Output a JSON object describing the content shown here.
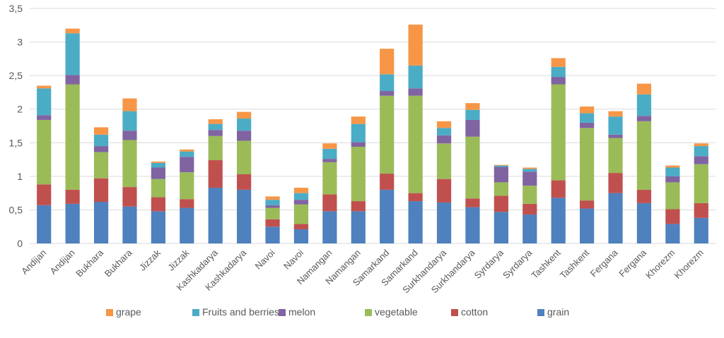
{
  "chart_data": {
    "type": "bar",
    "stacked": true,
    "grid": true,
    "legend_position": "bottom",
    "ylim": [
      0,
      3.5
    ],
    "y_ticks": [
      "0",
      "0,5",
      "1",
      "1,5",
      "2",
      "2,5",
      "3",
      "3,5"
    ],
    "categories": [
      "Andijan",
      "Andijan",
      "Bukhara",
      "Bukhara",
      "Jizzak",
      "Jizzak",
      "Kashkadarya",
      "Kashkadarya",
      "Navoi",
      "Navoi",
      "Namangan",
      "Namangan",
      "Samarkand",
      "Samarkand",
      "Surkhandarya",
      "Surkhandarya",
      "Syrdarya",
      "Syrdarya",
      "Tashkent",
      "Tashkent",
      "Fergana",
      "Fergana",
      "Khorezm",
      "Khorezm"
    ],
    "series": [
      {
        "name": "grain",
        "color": "#4E81BD",
        "values": [
          0.57,
          0.59,
          0.62,
          0.55,
          0.48,
          0.53,
          0.83,
          0.8,
          0.25,
          0.21,
          0.48,
          0.48,
          0.8,
          0.63,
          0.61,
          0.54,
          0.47,
          0.43,
          0.68,
          0.52,
          0.75,
          0.6,
          0.29,
          0.38
        ]
      },
      {
        "name": "cotton",
        "color": "#C0504E",
        "values": [
          0.31,
          0.21,
          0.35,
          0.29,
          0.21,
          0.13,
          0.41,
          0.23,
          0.11,
          0.08,
          0.25,
          0.15,
          0.24,
          0.12,
          0.35,
          0.13,
          0.24,
          0.16,
          0.26,
          0.12,
          0.3,
          0.2,
          0.22,
          0.22
        ]
      },
      {
        "name": "vegetable",
        "color": "#9BBB58",
        "values": [
          0.96,
          1.57,
          0.39,
          0.7,
          0.27,
          0.4,
          0.36,
          0.5,
          0.17,
          0.29,
          0.48,
          0.81,
          1.16,
          1.45,
          0.53,
          0.92,
          0.2,
          0.27,
          1.43,
          1.08,
          0.52,
          1.02,
          0.4,
          0.58
        ]
      },
      {
        "name": "melon",
        "color": "#8064A1",
        "values": [
          0.07,
          0.14,
          0.09,
          0.14,
          0.17,
          0.23,
          0.09,
          0.15,
          0.04,
          0.07,
          0.05,
          0.07,
          0.07,
          0.11,
          0.12,
          0.25,
          0.23,
          0.21,
          0.11,
          0.08,
          0.05,
          0.08,
          0.09,
          0.12
        ]
      },
      {
        "name": "Fruits and berries",
        "color": "#4BACC6",
        "values": [
          0.4,
          0.62,
          0.17,
          0.29,
          0.07,
          0.08,
          0.09,
          0.18,
          0.08,
          0.1,
          0.15,
          0.27,
          0.25,
          0.34,
          0.11,
          0.15,
          0.02,
          0.04,
          0.15,
          0.14,
          0.27,
          0.32,
          0.13,
          0.15
        ]
      },
      {
        "name": "grape",
        "color": "#F79647",
        "values": [
          0.04,
          0.07,
          0.11,
          0.19,
          0.02,
          0.03,
          0.07,
          0.1,
          0.05,
          0.08,
          0.08,
          0.11,
          0.38,
          0.61,
          0.1,
          0.1,
          0.01,
          0.02,
          0.13,
          0.1,
          0.08,
          0.16,
          0.03,
          0.04
        ]
      }
    ],
    "legend_order": [
      "grape",
      "Fruits and berries",
      "melon",
      "vegetable",
      "cotton",
      "grain"
    ]
  }
}
